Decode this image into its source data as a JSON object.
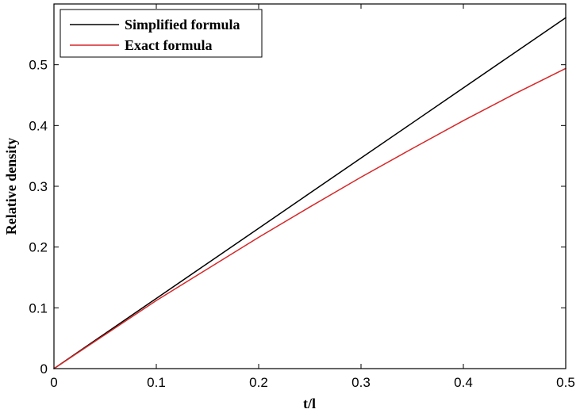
{
  "chart_data": {
    "type": "line",
    "title": "",
    "xlabel": "t/l",
    "ylabel": "Relative density",
    "xlim": [
      0,
      0.5
    ],
    "ylim": [
      0,
      0.6
    ],
    "x_ticks": [
      0,
      0.1,
      0.2,
      0.3,
      0.4,
      0.5
    ],
    "y_ticks": [
      0,
      0.1,
      0.2,
      0.3,
      0.4,
      0.5
    ],
    "x_tick_labels": [
      "0",
      "0.1",
      "0.2",
      "0.3",
      "0.4",
      "0.5"
    ],
    "y_tick_labels": [
      "0",
      "0.1",
      "0.2",
      "0.3",
      "0.4",
      "0.5"
    ],
    "grid": false,
    "legend_position": "top-left",
    "series": [
      {
        "name": "Simplified formula",
        "color": "#000000",
        "x": [
          0,
          0.05,
          0.1,
          0.15,
          0.2,
          0.25,
          0.3,
          0.35,
          0.4,
          0.45,
          0.5
        ],
        "y": [
          0,
          0.0577,
          0.1155,
          0.1732,
          0.2309,
          0.2887,
          0.3464,
          0.4041,
          0.4619,
          0.5196,
          0.5774
        ]
      },
      {
        "name": "Exact formula",
        "color": "#d62728",
        "x": [
          0,
          0.05,
          0.1,
          0.15,
          0.2,
          0.25,
          0.3,
          0.35,
          0.4,
          0.45,
          0.5
        ],
        "y": [
          0,
          0.056,
          0.112,
          0.164,
          0.216,
          0.266,
          0.315,
          0.362,
          0.408,
          0.452,
          0.494
        ]
      }
    ]
  }
}
